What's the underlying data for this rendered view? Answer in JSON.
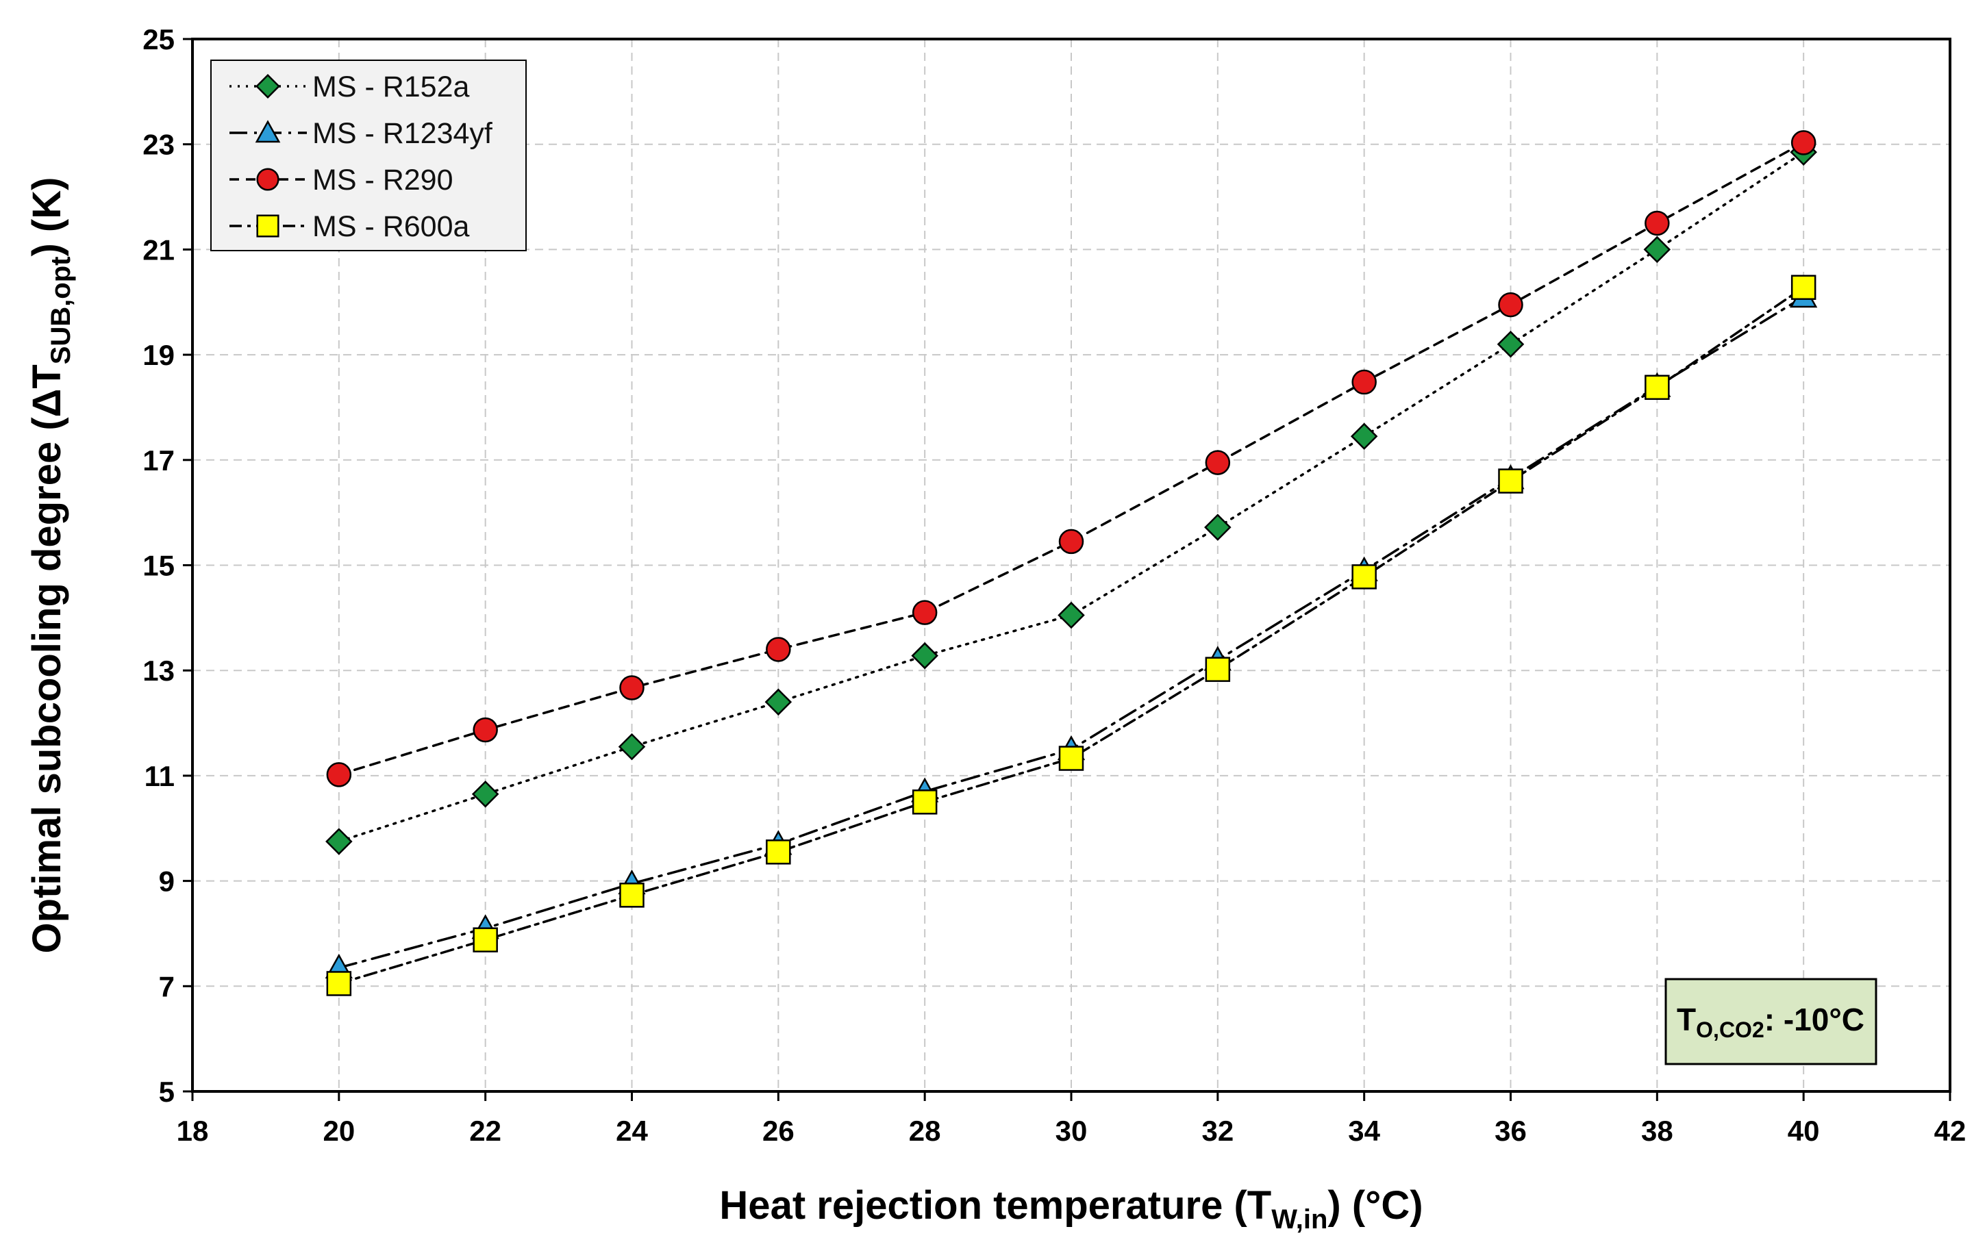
{
  "chart_data": {
    "type": "line",
    "x": [
      20,
      22,
      24,
      26,
      28,
      30,
      32,
      34,
      36,
      38,
      40
    ],
    "series": [
      {
        "name": "MS - R152a",
        "marker": "diamond",
        "color": "#1a9641",
        "dash": "3,9",
        "values": [
          9.75,
          10.65,
          11.55,
          12.4,
          13.28,
          14.05,
          15.72,
          17.45,
          19.2,
          21.0,
          22.85
        ]
      },
      {
        "name": "MS - R1234yf",
        "marker": "triangle",
        "color": "#2b9cd8",
        "dash": "26,10,4,10",
        "values": [
          7.35,
          8.1,
          8.95,
          9.7,
          10.7,
          11.5,
          13.2,
          14.9,
          16.65,
          18.4,
          20.1
        ]
      },
      {
        "name": "MS - R290",
        "marker": "circle",
        "color": "#e41a1c",
        "dash": "14,10",
        "values": [
          11.02,
          11.87,
          12.67,
          13.4,
          14.1,
          15.45,
          16.95,
          18.48,
          19.95,
          21.5,
          23.03
        ]
      },
      {
        "name": "MS - R600a",
        "marker": "square",
        "color": "#ffff00",
        "dash": "18,8,5,8",
        "values": [
          7.05,
          7.88,
          8.73,
          9.55,
          10.5,
          11.33,
          13.02,
          14.78,
          16.6,
          18.38,
          20.28
        ]
      }
    ],
    "xlim": [
      18,
      42
    ],
    "ylim": [
      5,
      25
    ],
    "xticks": [
      "18",
      "20",
      "22",
      "24",
      "26",
      "28",
      "30",
      "32",
      "34",
      "36",
      "38",
      "40",
      "42"
    ],
    "yticks": [
      "5",
      "7",
      "9",
      "11",
      "13",
      "15",
      "17",
      "19",
      "21",
      "23",
      "25"
    ],
    "xlabel": {
      "main": "Heat rejection temperature (T",
      "sub": "W,in",
      "tail": ") (°C)"
    },
    "ylabel": {
      "main": "Optimal subcooling degree (ΔT",
      "sub": "SUB,opt",
      "tail": ") (K)"
    },
    "grid": true,
    "legend_position": "top-left",
    "annotation": {
      "main": "T",
      "sub": "O,CO2",
      "tail": ": -10°C",
      "background": "#d9e8c4"
    }
  }
}
